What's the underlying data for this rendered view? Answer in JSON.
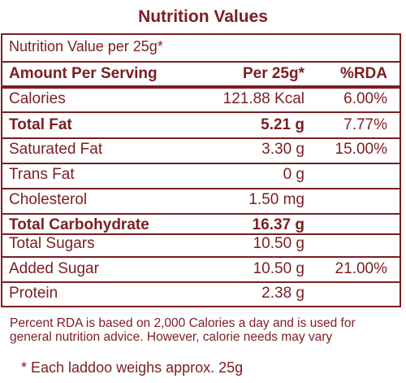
{
  "title": "Nutrition Values",
  "per_line": "Nutrition Value per 25g*",
  "header": {
    "amount": "Amount Per Serving",
    "per": "Per 25g*",
    "rda": "%RDA"
  },
  "rows": [
    {
      "name": "Calories",
      "per": "121.88 Kcal",
      "rda": "6.00%",
      "bold": false
    },
    {
      "name": "Total Fat",
      "per": "5.21 g",
      "rda": "7.77%",
      "bold": true
    },
    {
      "name": "Saturated Fat",
      "per": "3.30 g",
      "rda": "15.00%",
      "bold": false
    },
    {
      "name": "Trans Fat",
      "per": "0 g",
      "rda": "",
      "bold": false
    },
    {
      "name": "Cholesterol",
      "per": "1.50 mg",
      "rda": "",
      "bold": false
    },
    {
      "name": "Total Carbohydrate",
      "per": "16.37 g",
      "rda": "",
      "bold": true
    },
    {
      "name": "Total Sugars",
      "per": "10.50 g",
      "rda": "",
      "bold": false
    },
    {
      "name": "Added Sugar",
      "per": "10.50 g",
      "rda": "21.00%",
      "bold": false
    },
    {
      "name": "Protein",
      "per": "2.38 g",
      "rda": "",
      "bold": false
    }
  ],
  "footnote": "Percent RDA is based on 2,000 Calories a day and is used for general nutrition advice. However, calorie needs may vary",
  "weight_note": "* Each laddoo weighs approx. 25g",
  "colors": {
    "text": "#7a1e22",
    "background": "#ffffff"
  }
}
